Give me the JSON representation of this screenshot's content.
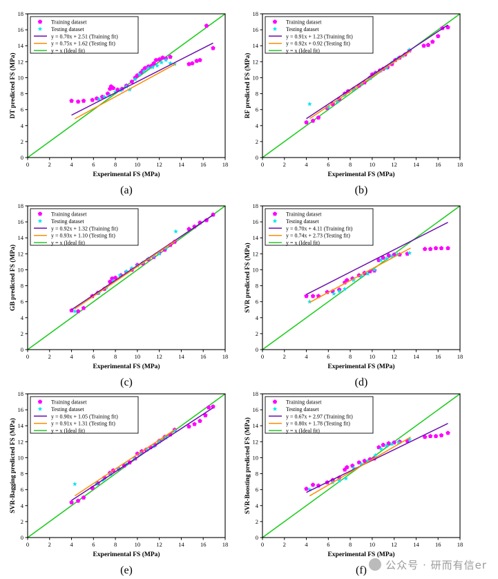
{
  "watermark": "公众号 · 研而有信er",
  "legend_entries": {
    "training": "Training dataset",
    "testing": "Testing dataset",
    "ideal": "y = x (Ideal fit)"
  },
  "colors": {
    "training_marker": "#ff00ff",
    "testing_marker": "#00e5ee",
    "training_fit": "#6a0dad",
    "testing_fit": "#ff8c00",
    "ideal_fit": "#22cc22",
    "axis": "#000000"
  },
  "chart_data": [
    {
      "type": "scatter",
      "panel_label": "(a)",
      "xlabel": "Experimental FS (MPa)",
      "ylabel": "DT predicted FS (MPa)",
      "xlim": [
        0,
        18
      ],
      "ylim": [
        0,
        18
      ],
      "ticks": [
        0,
        2,
        4,
        6,
        8,
        10,
        12,
        14,
        16,
        18
      ],
      "training_fit_label": "y = 0.70x + 2.51 (Training fit)",
      "testing_fit_label": "y = 0.75x + 1.62 (Testing fit)",
      "training_fit": {
        "slope": 0.7,
        "intercept": 2.51,
        "x_range": [
          4,
          16.9
        ]
      },
      "testing_fit": {
        "slope": 0.75,
        "intercept": 1.62,
        "x_range": [
          4.3,
          13.5
        ]
      },
      "training_points": [
        [
          4.0,
          7.1
        ],
        [
          4.6,
          7.0
        ],
        [
          5.1,
          7.1
        ],
        [
          5.9,
          7.2
        ],
        [
          6.3,
          7.4
        ],
        [
          6.8,
          7.6
        ],
        [
          7.3,
          8.0
        ],
        [
          7.5,
          8.6
        ],
        [
          7.6,
          8.9
        ],
        [
          7.8,
          8.7
        ],
        [
          8.2,
          8.5
        ],
        [
          8.6,
          8.6
        ],
        [
          9.0,
          9.0
        ],
        [
          9.5,
          9.5
        ],
        [
          9.8,
          10.0
        ],
        [
          10.0,
          10.3
        ],
        [
          10.3,
          10.6
        ],
        [
          10.5,
          10.9
        ],
        [
          10.7,
          11.2
        ],
        [
          11.0,
          11.4
        ],
        [
          11.3,
          11.5
        ],
        [
          11.5,
          11.8
        ],
        [
          11.7,
          12.2
        ],
        [
          12.0,
          12.3
        ],
        [
          12.3,
          12.5
        ],
        [
          12.6,
          12.4
        ],
        [
          13.0,
          12.6
        ],
        [
          14.7,
          11.7
        ],
        [
          15.0,
          11.8
        ],
        [
          15.4,
          12.1
        ],
        [
          15.7,
          12.2
        ],
        [
          16.3,
          16.5
        ],
        [
          16.9,
          13.7
        ]
      ],
      "testing_points": [
        [
          6.5,
          7.3
        ],
        [
          7.0,
          7.6
        ],
        [
          7.5,
          7.8
        ],
        [
          8.0,
          8.2
        ],
        [
          8.5,
          8.4
        ],
        [
          9.0,
          8.9
        ],
        [
          9.3,
          8.5
        ],
        [
          9.8,
          9.8
        ],
        [
          10.2,
          10.4
        ],
        [
          10.6,
          10.8
        ],
        [
          11.0,
          11.2
        ],
        [
          11.4,
          11.3
        ],
        [
          11.8,
          11.5
        ],
        [
          12.2,
          11.9
        ],
        [
          12.6,
          12.2
        ],
        [
          13.0,
          11.8
        ],
        [
          13.4,
          11.7
        ]
      ]
    },
    {
      "type": "scatter",
      "panel_label": "(b)",
      "xlabel": "Experimental FS (MPa)",
      "ylabel": "RF predicted FS (MPa)",
      "xlim": [
        0,
        18
      ],
      "ylim": [
        0,
        18
      ],
      "ticks": [
        0,
        2,
        4,
        6,
        8,
        10,
        12,
        14,
        16,
        18
      ],
      "training_fit_label": "y = 0.91x + 1.23 (Training fit)",
      "testing_fit_label": "y = 0.92x + 0.92 (Testing fit)",
      "training_fit": {
        "slope": 0.91,
        "intercept": 1.23,
        "x_range": [
          4,
          16.9
        ]
      },
      "testing_fit": {
        "slope": 0.92,
        "intercept": 0.92,
        "x_range": [
          4.3,
          13.5
        ]
      },
      "training_points": [
        [
          4.0,
          4.4
        ],
        [
          4.6,
          4.6
        ],
        [
          5.1,
          5.0
        ],
        [
          5.9,
          6.2
        ],
        [
          6.4,
          6.7
        ],
        [
          7.0,
          7.3
        ],
        [
          7.5,
          8.0
        ],
        [
          7.8,
          8.3
        ],
        [
          8.3,
          8.6
        ],
        [
          8.8,
          9.0
        ],
        [
          9.3,
          9.4
        ],
        [
          9.8,
          10.0
        ],
        [
          10.0,
          10.4
        ],
        [
          10.3,
          10.6
        ],
        [
          10.7,
          10.9
        ],
        [
          11.0,
          11.1
        ],
        [
          11.4,
          11.3
        ],
        [
          11.8,
          11.7
        ],
        [
          12.1,
          12.2
        ],
        [
          12.5,
          12.5
        ],
        [
          13.0,
          12.9
        ],
        [
          13.4,
          13.4
        ],
        [
          14.7,
          14.0
        ],
        [
          15.1,
          14.1
        ],
        [
          15.5,
          14.5
        ],
        [
          16.0,
          15.2
        ],
        [
          16.4,
          16.2
        ],
        [
          16.9,
          16.3
        ]
      ],
      "testing_points": [
        [
          4.3,
          6.7
        ],
        [
          6.0,
          6.3
        ],
        [
          6.8,
          7.0
        ],
        [
          7.5,
          7.8
        ],
        [
          8.3,
          8.5
        ],
        [
          9.0,
          9.2
        ],
        [
          9.8,
          9.9
        ],
        [
          10.3,
          10.5
        ],
        [
          10.8,
          10.9
        ],
        [
          11.3,
          11.2
        ],
        [
          11.8,
          11.9
        ],
        [
          12.3,
          12.4
        ],
        [
          12.8,
          12.7
        ],
        [
          13.4,
          13.5
        ]
      ]
    },
    {
      "type": "scatter",
      "panel_label": "(c)",
      "xlabel": "Experimental FS (MPa)",
      "ylabel": "GB predicted FS (MPa)",
      "xlim": [
        0,
        18
      ],
      "ylim": [
        0,
        18
      ],
      "ticks": [
        0,
        2,
        4,
        6,
        8,
        10,
        12,
        14,
        16,
        18
      ],
      "training_fit_label": "y = 0.92x + 1.32 (Training fit)",
      "testing_fit_label": "y = 0.93x + 1.10 (Testing fit)",
      "training_fit": {
        "slope": 0.92,
        "intercept": 1.32,
        "x_range": [
          4,
          16.9
        ]
      },
      "testing_fit": {
        "slope": 0.93,
        "intercept": 1.1,
        "x_range": [
          4.3,
          13.5
        ]
      },
      "training_points": [
        [
          4.0,
          4.9
        ],
        [
          4.6,
          4.8
        ],
        [
          5.1,
          5.2
        ],
        [
          5.9,
          6.7
        ],
        [
          6.4,
          7.1
        ],
        [
          7.0,
          7.6
        ],
        [
          7.5,
          8.5
        ],
        [
          7.7,
          8.9
        ],
        [
          8.0,
          9.0
        ],
        [
          8.5,
          9.3
        ],
        [
          9.0,
          9.7
        ],
        [
          9.5,
          10.0
        ],
        [
          10.0,
          10.6
        ],
        [
          10.5,
          10.8
        ],
        [
          11.0,
          11.3
        ],
        [
          11.5,
          11.6
        ],
        [
          12.0,
          12.1
        ],
        [
          12.5,
          12.5
        ],
        [
          13.0,
          13.1
        ],
        [
          13.4,
          13.5
        ],
        [
          14.7,
          15.1
        ],
        [
          15.2,
          15.4
        ],
        [
          15.7,
          15.9
        ],
        [
          16.3,
          16.2
        ],
        [
          16.9,
          16.9
        ]
      ],
      "testing_points": [
        [
          4.3,
          4.8
        ],
        [
          6.5,
          7.1
        ],
        [
          7.2,
          7.8
        ],
        [
          7.8,
          8.6
        ],
        [
          8.4,
          9.3
        ],
        [
          9.0,
          9.8
        ],
        [
          9.5,
          10.2
        ],
        [
          10.0,
          10.5
        ],
        [
          10.5,
          10.9
        ],
        [
          11.0,
          11.4
        ],
        [
          11.5,
          11.7
        ],
        [
          12.0,
          12.0
        ],
        [
          12.6,
          12.7
        ],
        [
          13.5,
          14.8
        ]
      ]
    },
    {
      "type": "scatter",
      "panel_label": "(d)",
      "xlabel": "Experimental FS (MPa)",
      "ylabel": "SVR predicted FS (MPa)",
      "xlim": [
        0,
        18
      ],
      "ylim": [
        0,
        18
      ],
      "ticks": [
        0,
        2,
        4,
        6,
        8,
        10,
        12,
        14,
        16,
        18
      ],
      "training_fit_label": "y = 0.70x + 4.11 (Training fit)",
      "testing_fit_label": "y = 0.74x + 2.73 (Testing fit)",
      "training_fit": {
        "slope": 0.7,
        "intercept": 4.11,
        "x_range": [
          4,
          16.9
        ]
      },
      "testing_fit": {
        "slope": 0.74,
        "intercept": 2.73,
        "x_range": [
          4.3,
          13.5
        ]
      },
      "training_points": [
        [
          4.0,
          6.7
        ],
        [
          4.6,
          6.7
        ],
        [
          5.1,
          6.7
        ],
        [
          5.9,
          7.2
        ],
        [
          6.4,
          7.3
        ],
        [
          7.0,
          7.5
        ],
        [
          7.5,
          8.4
        ],
        [
          7.7,
          8.7
        ],
        [
          8.2,
          8.9
        ],
        [
          8.8,
          9.3
        ],
        [
          9.3,
          9.6
        ],
        [
          9.8,
          9.8
        ],
        [
          10.2,
          9.9
        ],
        [
          10.6,
          11.2
        ],
        [
          11.0,
          11.5
        ],
        [
          11.5,
          11.8
        ],
        [
          12.0,
          11.9
        ],
        [
          12.5,
          11.9
        ],
        [
          13.2,
          12.0
        ],
        [
          14.8,
          12.6
        ],
        [
          15.3,
          12.6
        ],
        [
          15.8,
          12.7
        ],
        [
          16.3,
          12.7
        ],
        [
          16.9,
          12.7
        ]
      ],
      "testing_points": [
        [
          4.3,
          6.0
        ],
        [
          6.5,
          7.0
        ],
        [
          7.0,
          7.3
        ],
        [
          7.5,
          7.6
        ],
        [
          8.3,
          8.7
        ],
        [
          9.0,
          9.2
        ],
        [
          9.6,
          9.5
        ],
        [
          10.2,
          10.0
        ],
        [
          10.8,
          11.2
        ],
        [
          11.3,
          11.4
        ],
        [
          11.8,
          11.7
        ],
        [
          12.3,
          11.9
        ],
        [
          13.4,
          12.1
        ]
      ]
    },
    {
      "type": "scatter",
      "panel_label": "(e)",
      "xlabel": "Experimental FS (MPa)",
      "ylabel": "SVR-Bagging predicted FS (MPa)",
      "xlim": [
        0,
        18
      ],
      "ylim": [
        0,
        18
      ],
      "ticks": [
        0,
        2,
        4,
        6,
        8,
        10,
        12,
        14,
        16,
        18
      ],
      "training_fit_label": "y = 0.90x + 1.05 (Training fit)",
      "testing_fit_label": "y = 0.91x + 1.31 (Testing fit)",
      "training_fit": {
        "slope": 0.9,
        "intercept": 1.05,
        "x_range": [
          4,
          16.9
        ]
      },
      "testing_fit": {
        "slope": 0.91,
        "intercept": 1.31,
        "x_range": [
          4.3,
          13.5
        ]
      },
      "training_points": [
        [
          4.0,
          4.4
        ],
        [
          4.6,
          4.6
        ],
        [
          5.1,
          5.0
        ],
        [
          5.9,
          6.2
        ],
        [
          6.4,
          6.8
        ],
        [
          7.0,
          7.5
        ],
        [
          7.5,
          8.1
        ],
        [
          7.8,
          8.4
        ],
        [
          8.3,
          8.6
        ],
        [
          8.8,
          9.0
        ],
        [
          9.3,
          9.4
        ],
        [
          9.8,
          9.9
        ],
        [
          10.0,
          10.5
        ],
        [
          10.4,
          10.8
        ],
        [
          10.8,
          11.0
        ],
        [
          11.2,
          11.3
        ],
        [
          11.6,
          11.6
        ],
        [
          12.0,
          12.1
        ],
        [
          12.5,
          12.6
        ],
        [
          13.0,
          12.9
        ],
        [
          13.4,
          13.5
        ],
        [
          14.7,
          13.9
        ],
        [
          15.2,
          14.2
        ],
        [
          15.7,
          14.6
        ],
        [
          16.2,
          15.3
        ],
        [
          16.5,
          16.3
        ],
        [
          16.9,
          16.4
        ]
      ],
      "testing_points": [
        [
          4.3,
          6.7
        ],
        [
          6.3,
          6.7
        ],
        [
          6.9,
          7.2
        ],
        [
          7.6,
          7.9
        ],
        [
          8.3,
          8.6
        ],
        [
          9.0,
          9.2
        ],
        [
          9.7,
          9.9
        ],
        [
          10.3,
          10.5
        ],
        [
          10.9,
          11.0
        ],
        [
          11.5,
          11.4
        ],
        [
          12.0,
          12.0
        ],
        [
          12.6,
          12.5
        ],
        [
          13.4,
          13.4
        ]
      ]
    },
    {
      "type": "scatter",
      "panel_label": "(f)",
      "xlabel": "Experimental FS (MPa)",
      "ylabel": "SVR-Boosting predicted FS (MPa)",
      "xlim": [
        0,
        18
      ],
      "ylim": [
        0,
        18
      ],
      "ticks": [
        0,
        2,
        4,
        6,
        8,
        10,
        12,
        14,
        16,
        18
      ],
      "training_fit_label": "y = 0.67x + 2.97 (Training fit)",
      "testing_fit_label": "y = 0.80x + 1.78 (Testing fit)",
      "training_fit": {
        "slope": 0.67,
        "intercept": 2.97,
        "x_range": [
          4,
          16.9
        ]
      },
      "testing_fit": {
        "slope": 0.8,
        "intercept": 1.78,
        "x_range": [
          4.3,
          13.5
        ]
      },
      "training_points": [
        [
          4.0,
          6.1
        ],
        [
          4.6,
          6.6
        ],
        [
          5.1,
          6.5
        ],
        [
          5.9,
          6.9
        ],
        [
          6.4,
          7.2
        ],
        [
          7.0,
          7.5
        ],
        [
          7.5,
          8.5
        ],
        [
          7.7,
          8.8
        ],
        [
          8.2,
          9.0
        ],
        [
          8.8,
          9.4
        ],
        [
          9.3,
          9.6
        ],
        [
          9.8,
          9.8
        ],
        [
          10.2,
          9.9
        ],
        [
          10.6,
          11.3
        ],
        [
          11.0,
          11.6
        ],
        [
          11.5,
          11.8
        ],
        [
          12.0,
          11.9
        ],
        [
          12.5,
          12.0
        ],
        [
          13.2,
          12.1
        ],
        [
          14.8,
          12.6
        ],
        [
          15.3,
          12.7
        ],
        [
          15.8,
          12.7
        ],
        [
          16.3,
          12.8
        ],
        [
          16.9,
          13.1
        ]
      ],
      "testing_points": [
        [
          4.3,
          6.0
        ],
        [
          6.4,
          6.9
        ],
        [
          7.0,
          7.1
        ],
        [
          7.6,
          7.4
        ],
        [
          8.3,
          8.7
        ],
        [
          9.0,
          9.2
        ],
        [
          9.6,
          9.6
        ],
        [
          10.3,
          10.3
        ],
        [
          10.8,
          11.1
        ],
        [
          11.3,
          11.5
        ],
        [
          11.8,
          11.7
        ],
        [
          12.4,
          11.9
        ],
        [
          13.4,
          12.3
        ]
      ]
    }
  ]
}
